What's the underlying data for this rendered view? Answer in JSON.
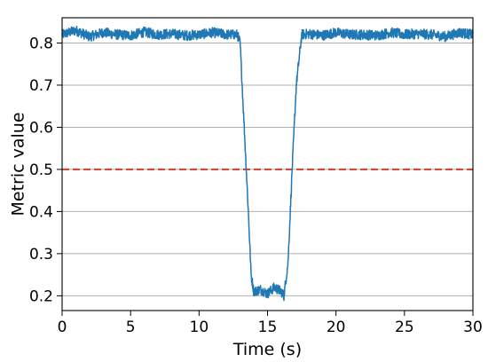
{
  "chart_data": {
    "type": "line",
    "title": "",
    "xlabel": "Time (s)",
    "ylabel": "Metric value",
    "xlim": [
      0,
      30
    ],
    "ylim": [
      0.165,
      0.86
    ],
    "xticks": [
      0,
      5,
      10,
      15,
      20,
      25,
      30
    ],
    "xtick_labels": [
      "0",
      "5",
      "10",
      "15",
      "20",
      "25",
      "30"
    ],
    "yticks": [
      0.2,
      0.3,
      0.4,
      0.5,
      0.6,
      0.7,
      0.8
    ],
    "ytick_labels": [
      "0.2",
      "0.3",
      "0.4",
      "0.5",
      "0.6",
      "0.7",
      "0.8"
    ],
    "grid": "horizontal",
    "series": [
      {
        "color": "#1f77b4",
        "x": [
          0,
          1,
          2,
          3,
          4,
          5,
          6,
          7,
          8,
          9,
          10,
          11,
          12,
          12.8,
          13.0,
          13.3,
          13.6,
          13.8,
          14.0,
          14.5,
          15.0,
          15.5,
          16.0,
          16.2,
          16.5,
          16.8,
          17.1,
          17.5,
          18,
          19,
          20,
          21,
          22,
          23,
          24,
          25,
          26,
          27,
          28,
          29,
          30
        ],
        "values": [
          0.82,
          0.83,
          0.815,
          0.825,
          0.82,
          0.818,
          0.826,
          0.82,
          0.822,
          0.818,
          0.82,
          0.825,
          0.82,
          0.82,
          0.8,
          0.6,
          0.4,
          0.25,
          0.21,
          0.215,
          0.205,
          0.22,
          0.21,
          0.2,
          0.28,
          0.5,
          0.7,
          0.82,
          0.822,
          0.818,
          0.825,
          0.82,
          0.82,
          0.818,
          0.825,
          0.82,
          0.822,
          0.82,
          0.815,
          0.825,
          0.82
        ],
        "noise_amplitude": 0.012
      }
    ],
    "reference_lines": [
      {
        "orientation": "horizontal",
        "value": 0.5,
        "color": "#d04a3a",
        "style": "dashed"
      }
    ]
  }
}
